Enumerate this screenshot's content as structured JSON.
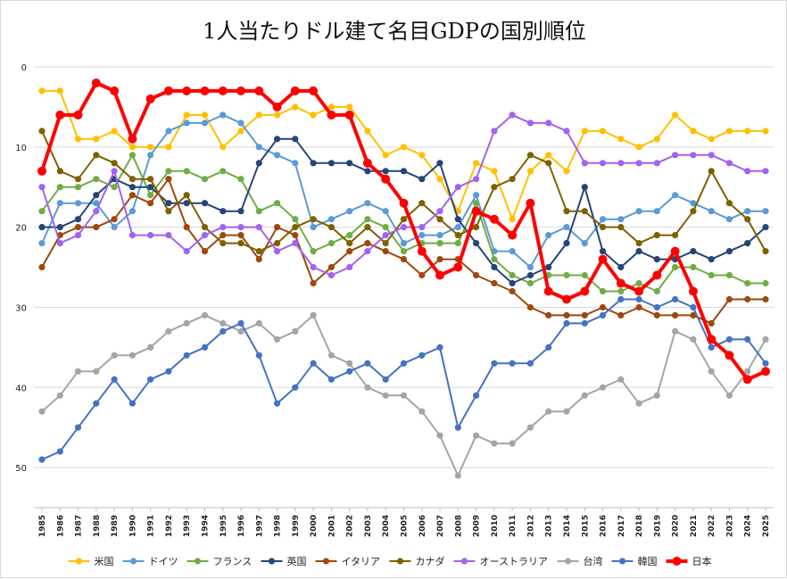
{
  "chart_data": {
    "type": "line",
    "title": "1人当たりドル建て名目GDPの国別順位",
    "xlabel": "",
    "ylabel": "",
    "ylim": [
      55,
      0
    ],
    "y_reversed": true,
    "yticks": [
      0,
      10,
      20,
      30,
      40,
      50
    ],
    "grid": "horizontal",
    "legend_position": "bottom",
    "x": [
      "1985",
      "1986",
      "1987",
      "1988",
      "1989",
      "1990",
      "1991",
      "1992",
      "1993",
      "1994",
      "1995",
      "1996",
      "1997",
      "1998",
      "1999",
      "2000",
      "2001",
      "2002",
      "2003",
      "2004",
      "2005",
      "2006",
      "2007",
      "2008",
      "2009",
      "2010",
      "2011",
      "2012",
      "2013",
      "2014",
      "2015",
      "2016",
      "2017",
      "2018",
      "2019",
      "2020",
      "2021",
      "2022",
      "2023",
      "2024",
      "2025"
    ],
    "series": [
      {
        "name": "米国",
        "color": "#FFC000",
        "values": [
          3,
          3,
          9,
          9,
          8,
          10,
          10,
          10,
          6,
          6,
          10,
          8,
          6,
          6,
          5,
          6,
          5,
          5,
          8,
          11,
          10,
          11,
          14,
          18,
          12,
          13,
          19,
          13,
          11,
          13,
          8,
          8,
          9,
          10,
          9,
          6,
          8,
          9,
          8,
          8,
          8
        ]
      },
      {
        "name": "ドイツ",
        "color": "#5B9BD5",
        "values": [
          22,
          17,
          17,
          17,
          20,
          18,
          11,
          8,
          7,
          7,
          6,
          7,
          10,
          11,
          12,
          20,
          19,
          18,
          17,
          18,
          22,
          21,
          21,
          20,
          16,
          23,
          23,
          25,
          21,
          20,
          22,
          19,
          19,
          18,
          18,
          16,
          17,
          18,
          19,
          18,
          18
        ]
      },
      {
        "name": "フランス",
        "color": "#70AD47",
        "values": [
          18,
          15,
          15,
          14,
          15,
          11,
          16,
          13,
          13,
          14,
          13,
          14,
          18,
          17,
          19,
          23,
          22,
          21,
          19,
          20,
          23,
          22,
          22,
          22,
          17,
          24,
          26,
          27,
          26,
          26,
          26,
          28,
          28,
          27,
          28,
          25,
          25,
          26,
          26,
          27,
          27
        ]
      },
      {
        "name": "英国",
        "color": "#264478",
        "values": [
          20,
          20,
          19,
          16,
          14,
          15,
          15,
          17,
          17,
          17,
          18,
          18,
          12,
          9,
          9,
          12,
          12,
          12,
          13,
          13,
          13,
          14,
          12,
          19,
          22,
          25,
          27,
          26,
          25,
          22,
          15,
          23,
          25,
          23,
          24,
          24,
          23,
          24,
          23,
          22,
          20
        ]
      },
      {
        "name": "イタリア",
        "color": "#9E480E",
        "values": [
          25,
          21,
          20,
          20,
          19,
          16,
          17,
          14,
          20,
          23,
          21,
          21,
          24,
          20,
          21,
          27,
          25,
          23,
          22,
          23,
          24,
          26,
          24,
          24,
          26,
          27,
          28,
          30,
          31,
          31,
          31,
          30,
          31,
          30,
          31,
          31,
          31,
          32,
          29,
          29,
          29
        ]
      },
      {
        "name": "カナダ",
        "color": "#7F6000",
        "values": [
          8,
          13,
          14,
          11,
          12,
          14,
          14,
          18,
          16,
          20,
          22,
          22,
          23,
          22,
          20,
          19,
          20,
          22,
          20,
          22,
          19,
          17,
          19,
          21,
          20,
          15,
          14,
          11,
          12,
          18,
          18,
          20,
          20,
          22,
          21,
          21,
          18,
          13,
          17,
          19,
          23
        ]
      },
      {
        "name": "オーストラリア",
        "color": "#A064F0",
        "values": [
          15,
          22,
          21,
          18,
          13,
          21,
          21,
          21,
          23,
          21,
          20,
          20,
          20,
          23,
          22,
          25,
          26,
          25,
          23,
          21,
          20,
          20,
          18,
          15,
          14,
          8,
          6,
          7,
          7,
          8,
          12,
          12,
          12,
          12,
          12,
          11,
          11,
          11,
          12,
          13,
          13
        ]
      },
      {
        "name": "台湾",
        "color": "#A5A5A5",
        "values": [
          43,
          41,
          38,
          38,
          36,
          36,
          35,
          33,
          32,
          31,
          32,
          33,
          32,
          34,
          33,
          31,
          36,
          37,
          40,
          41,
          41,
          43,
          46,
          51,
          46,
          47,
          47,
          45,
          43,
          43,
          41,
          40,
          39,
          42,
          41,
          33,
          34,
          38,
          41,
          38,
          34
        ]
      },
      {
        "name": "韓国",
        "color": "#4472C4",
        "values": [
          49,
          48,
          45,
          42,
          39,
          42,
          39,
          38,
          36,
          35,
          33,
          32,
          36,
          42,
          40,
          37,
          39,
          38,
          37,
          39,
          37,
          36,
          35,
          45,
          41,
          37,
          37,
          37,
          35,
          32,
          32,
          31,
          29,
          29,
          30,
          29,
          30,
          35,
          34,
          34,
          37
        ]
      },
      {
        "name": "日本",
        "color": "#FF0000",
        "values": [
          13,
          6,
          6,
          2,
          3,
          9,
          4,
          3,
          3,
          3,
          3,
          3,
          3,
          5,
          3,
          3,
          6,
          6,
          12,
          14,
          17,
          23,
          26,
          25,
          18,
          19,
          21,
          17,
          28,
          29,
          28,
          24,
          27,
          28,
          26,
          23,
          28,
          34,
          36,
          39,
          38
        ],
        "bold": true
      }
    ]
  }
}
